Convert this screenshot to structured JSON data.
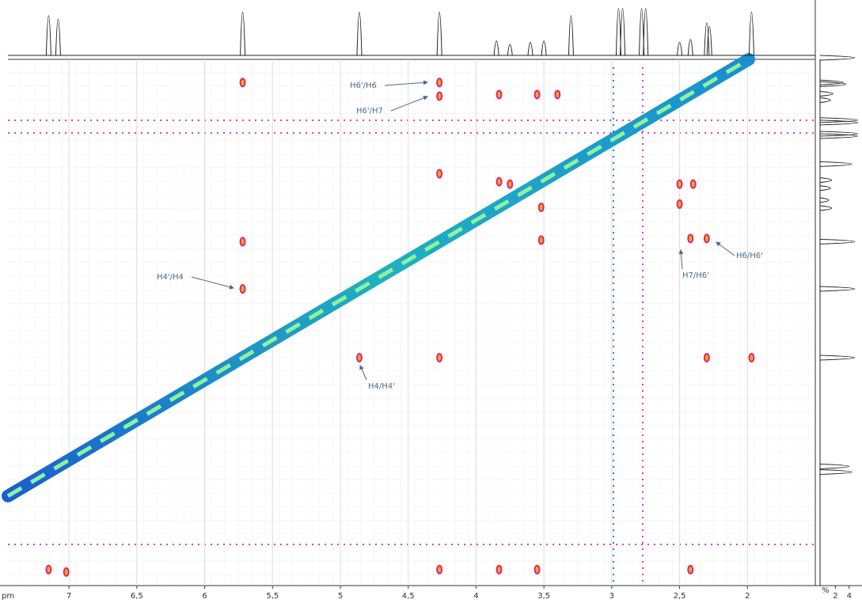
{
  "chart_data": {
    "type": "contour2d",
    "x_axis_label": "pm",
    "xlim": [
      7.45,
      1.5
    ],
    "ylim": [
      8.57,
      1.99
    ],
    "xticks": [
      7,
      {
        "value": 6.5,
        "label": "6,5"
      },
      6,
      {
        "value": 5.5,
        "label": "5,5"
      },
      5,
      {
        "value": 4.5,
        "label": "4,5"
      },
      4,
      {
        "value": 3.5,
        "label": "3,5"
      },
      3,
      {
        "value": 2.5,
        "label": "2,5"
      },
      2
    ],
    "grid": true,
    "projection": {
      "ppm": [
        7.15,
        7.08,
        5.72,
        4.86,
        4.27,
        3.85,
        3.75,
        3.6,
        3.5,
        3.3,
        2.95,
        2.92,
        2.78,
        2.75,
        2.5,
        2.42,
        2.3,
        2.28,
        1.97
      ],
      "intensity": [
        55,
        50,
        60,
        60,
        60,
        20,
        15,
        18,
        20,
        55,
        65,
        65,
        65,
        65,
        18,
        22,
        45,
        40,
        60
      ],
      "intensity_lim": [
        0,
        70
      ],
      "color": "#222222"
    },
    "right_axis": {
      "label": "%",
      "ticks": [
        2,
        4
      ],
      "lim": [
        0,
        4.6
      ]
    },
    "cross_peaks": {
      "x": [
        5.72,
        4.27,
        4.27,
        4.27,
        5.72,
        5.72,
        4.86,
        4.27,
        7.15,
        3.83,
        3.55,
        3.4,
        3.83,
        3.75,
        3.52,
        3.52,
        2.5,
        2.4,
        2.5,
        2.42,
        2.3,
        2.3,
        1.97,
        2.42,
        3.55,
        3.83,
        4.27,
        7.02
      ],
      "y": [
        2.28,
        2.28,
        2.45,
        3.42,
        4.27,
        4.86,
        5.72,
        5.72,
        8.37,
        2.43,
        2.43,
        2.43,
        3.52,
        3.55,
        3.84,
        4.25,
        3.55,
        3.55,
        3.8,
        4.23,
        4.23,
        5.72,
        5.72,
        8.37,
        8.37,
        8.37,
        8.37,
        8.4
      ],
      "color": "#e0208a"
    },
    "diagonal_color": "#1a8fd0",
    "annotations": [
      "H6'/H6",
      "H6'/H7",
      "H4'/H4",
      "H4/H4'",
      "H7/H6'",
      "H6/H6'"
    ]
  }
}
